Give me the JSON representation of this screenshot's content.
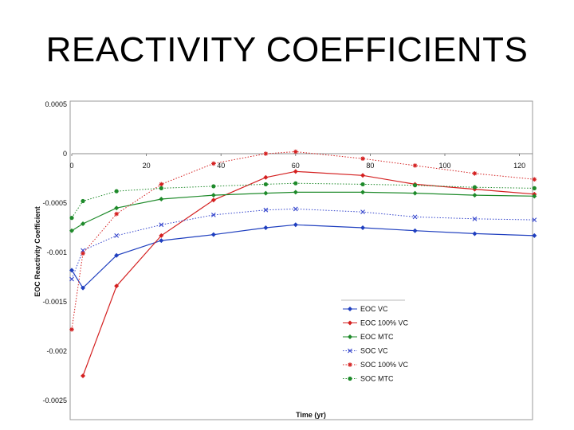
{
  "slide": {
    "title": "REACTIVITY COEFFICIENTS"
  },
  "chart_data": {
    "type": "line",
    "title": "",
    "xlabel": "Time (yr)",
    "ylabel": "EOC Reactivity Coefficient",
    "xlim": [
      0,
      125
    ],
    "ylim": [
      -0.0025,
      0.0005
    ],
    "x_ticks": [
      "0",
      "20",
      "40",
      "60",
      "80",
      "100",
      "120"
    ],
    "y_ticks": [
      "0.0005",
      "0",
      "-0.0005",
      "-0.001",
      "-0.0015",
      "-0.002",
      "-0.0025"
    ],
    "grid": false,
    "legend_position": "bottom-right",
    "series": [
      {
        "name": "EOC VC",
        "color": "#1f3fbf",
        "line": "solid",
        "marker": "diamond",
        "x": [
          0,
          3,
          12,
          24,
          38,
          52,
          60,
          78,
          92,
          108,
          124
        ],
        "y": [
          -0.00118,
          -0.00136,
          -0.00103,
          -0.00088,
          -0.00082,
          -0.00075,
          -0.00072,
          -0.00075,
          -0.00078,
          -0.00081,
          -0.00083
        ]
      },
      {
        "name": "EOC 100% VC",
        "color": "#d42020",
        "line": "solid",
        "marker": "diamond",
        "x": [
          3,
          12,
          24,
          38,
          52,
          60,
          78,
          92,
          108,
          124
        ],
        "y": [
          -0.00225,
          -0.00134,
          -0.00083,
          -0.00047,
          -0.00024,
          -0.00018,
          -0.00022,
          -0.00031,
          -0.00036,
          -0.00041
        ]
      },
      {
        "name": "EOC MTC",
        "color": "#1e8a2a",
        "line": "solid",
        "marker": "diamond",
        "x": [
          0,
          3,
          12,
          24,
          38,
          52,
          60,
          78,
          92,
          108,
          124
        ],
        "y": [
          -0.00078,
          -0.00071,
          -0.00055,
          -0.00046,
          -0.00042,
          -0.0004,
          -0.00039,
          -0.00039,
          -0.0004,
          -0.00042,
          -0.00043
        ]
      },
      {
        "name": "SOC VC",
        "color": "#3344cc",
        "line": "dotted",
        "marker": "x",
        "x": [
          0,
          3,
          12,
          24,
          38,
          52,
          60,
          78,
          92,
          108,
          124
        ],
        "y": [
          -0.00127,
          -0.00098,
          -0.00083,
          -0.00072,
          -0.00062,
          -0.00057,
          -0.00056,
          -0.00059,
          -0.00064,
          -0.00066,
          -0.00067
        ]
      },
      {
        "name": "SOC 100% VC",
        "color": "#d42020",
        "line": "dotted",
        "marker": "asterisk",
        "x": [
          0,
          3,
          12,
          24,
          38,
          52,
          60,
          78,
          92,
          108,
          124
        ],
        "y": [
          -0.00178,
          -0.00101,
          -0.00061,
          -0.00031,
          -0.0001,
          0.0,
          2e-05,
          -5e-05,
          -0.00012,
          -0.0002,
          -0.00026
        ]
      },
      {
        "name": "SOC MTC",
        "color": "#1e8a2a",
        "line": "dotted",
        "marker": "circle",
        "x": [
          0,
          3,
          12,
          24,
          38,
          52,
          60,
          78,
          92,
          108,
          124
        ],
        "y": [
          -0.00065,
          -0.00048,
          -0.00038,
          -0.00035,
          -0.00033,
          -0.00031,
          -0.0003,
          -0.00031,
          -0.00032,
          -0.00034,
          -0.00035
        ]
      }
    ]
  }
}
